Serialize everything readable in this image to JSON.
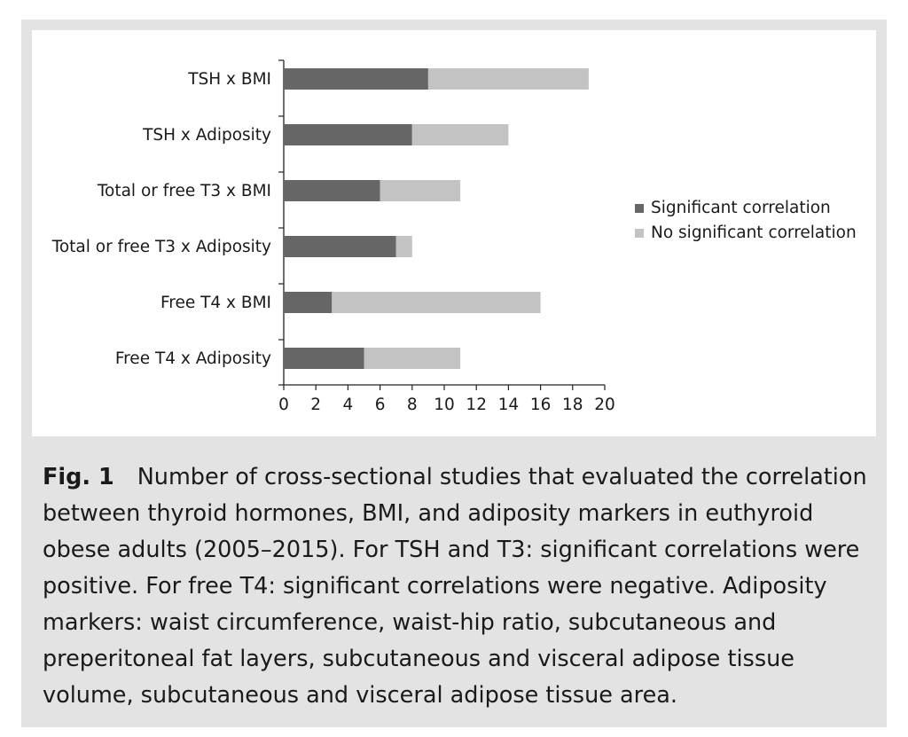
{
  "chart_data": {
    "type": "bar",
    "orientation": "horizontal",
    "stacked": true,
    "categories": [
      "TSH x BMI",
      "TSH x Adiposity",
      "Total or free T3 x BMI",
      "Total or free T3 x Adiposity",
      "Free T4 x BMI",
      "Free T4 x Adiposity"
    ],
    "series": [
      {
        "name": "Significant correlation",
        "color": "#666666",
        "values": [
          9,
          8,
          6,
          7,
          3,
          5
        ]
      },
      {
        "name": "No significant correlation",
        "color": "#c3c3c3",
        "values": [
          10,
          6,
          5,
          1,
          13,
          6
        ]
      }
    ],
    "xlim": [
      0,
      20
    ],
    "xticks": [
      0,
      2,
      4,
      6,
      8,
      10,
      12,
      14,
      16,
      18,
      20
    ],
    "legend_position": "right",
    "grid": false
  },
  "caption": {
    "label": "Fig. 1",
    "text": "Number of cross-sectional studies that evaluated the correlation between thyroid hormones, BMI, and adiposity markers in euthyroid obese adults (2005–2015). For TSH and T3: significant correlations were positive. For free T4: significant correlations were negative. Adiposity markers: waist circumference, waist-hip ratio, subcutaneous and preperitoneal fat layers, subcutaneous and visceral adipose tissue volume, subcutaneous and visceral adipose tissue area."
  }
}
